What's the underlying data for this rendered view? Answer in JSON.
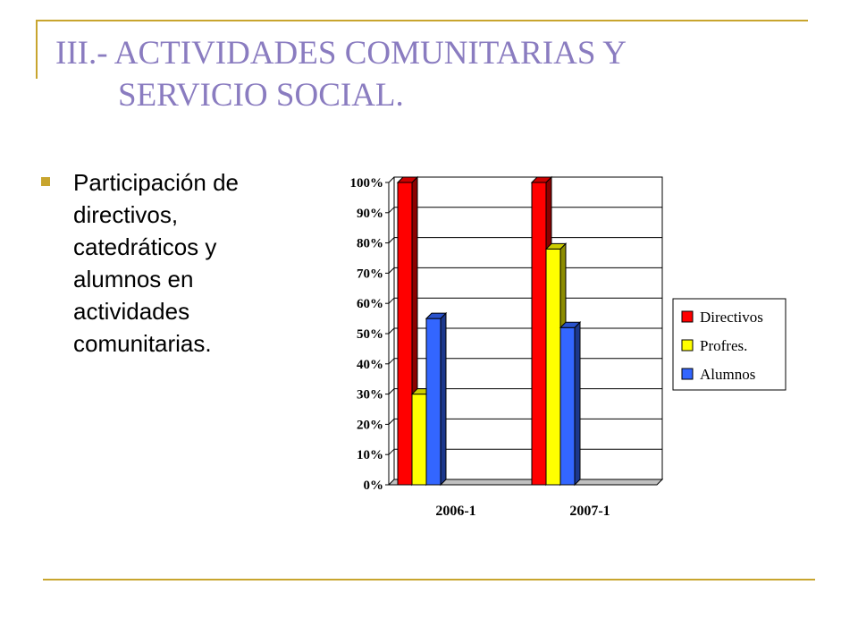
{
  "slide": {
    "title_line1": "III.- ACTIVIDADES COMUNITARIAS Y",
    "title_line2": "SERVICIO SOCIAL.",
    "bullet": "Participación de directivos, catedráticos y alumnos en actividades comunitarias.",
    "colors": {
      "accent": "#c8a52e",
      "title": "#8a7cc0"
    }
  },
  "chart_data": {
    "type": "bar",
    "categories": [
      "2006-1",
      "2007-1"
    ],
    "series": [
      {
        "name": "Directivos",
        "values": [
          100,
          100
        ],
        "color": "#ff0000"
      },
      {
        "name": "Profres.",
        "values": [
          30,
          78
        ],
        "color": "#ffff00"
      },
      {
        "name": "Alumnos",
        "values": [
          55,
          52
        ],
        "color": "#3366ff"
      }
    ],
    "ylim": [
      0,
      100
    ],
    "yticks": [
      "0%",
      "10%",
      "20%",
      "30%",
      "40%",
      "50%",
      "60%",
      "70%",
      "80%",
      "90%",
      "100%"
    ],
    "grid": true,
    "legend": "right",
    "style": "3d"
  }
}
